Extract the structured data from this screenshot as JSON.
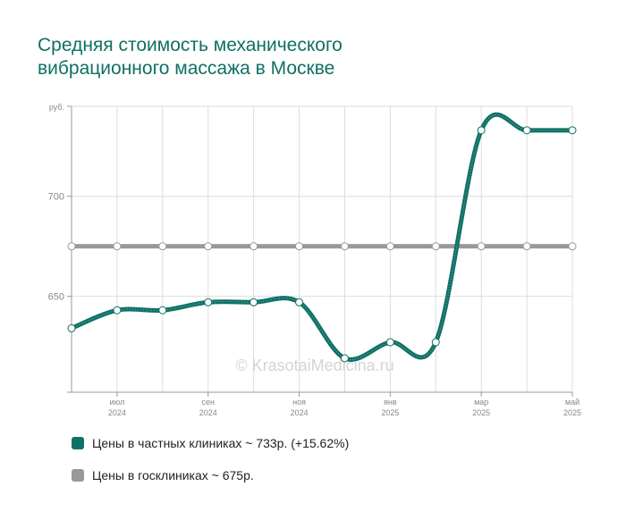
{
  "title_line1": "Средняя стоимость механического",
  "title_line2": "вибрационного массажа в Москве",
  "watermark": "© KrasotaiMedicina.ru",
  "colors": {
    "private": "#0f7065",
    "public": "#999999",
    "grid": "#dddddd",
    "axis": "#999999",
    "tick_text": "#888888"
  },
  "chart_data": {
    "type": "line",
    "y_unit_label": "руб.",
    "ylim": [
      602,
      745
    ],
    "yticks": [
      650,
      700
    ],
    "grid": true,
    "x_tick_labels": [
      {
        "month": "июл",
        "year": "2024",
        "index": 1
      },
      {
        "month": "сен",
        "year": "2024",
        "index": 3
      },
      {
        "month": "ноя",
        "year": "2024",
        "index": 5
      },
      {
        "month": "янв",
        "year": "2025",
        "index": 7
      },
      {
        "month": "мар",
        "year": "2025",
        "index": 9
      },
      {
        "month": "май",
        "year": "2025",
        "index": 11
      }
    ],
    "x": [
      "2024-06",
      "2024-07",
      "2024-08",
      "2024-09",
      "2024-10",
      "2024-11",
      "2024-12",
      "2025-01",
      "2025-02",
      "2025-03",
      "2025-04",
      "2025-05"
    ],
    "series": [
      {
        "name": "Цены в частных клиниках ~ 733р. (+15.62%)",
        "color": "#0f7065",
        "values": [
          634,
          643,
          643,
          647,
          647,
          647,
          619,
          627,
          627,
          733,
          733,
          733
        ]
      },
      {
        "name": "Цены в госклиниках ~ 675р.",
        "color": "#999999",
        "values": [
          675,
          675,
          675,
          675,
          675,
          675,
          675,
          675,
          675,
          675,
          675,
          675
        ]
      }
    ],
    "legend_position": "bottom"
  }
}
